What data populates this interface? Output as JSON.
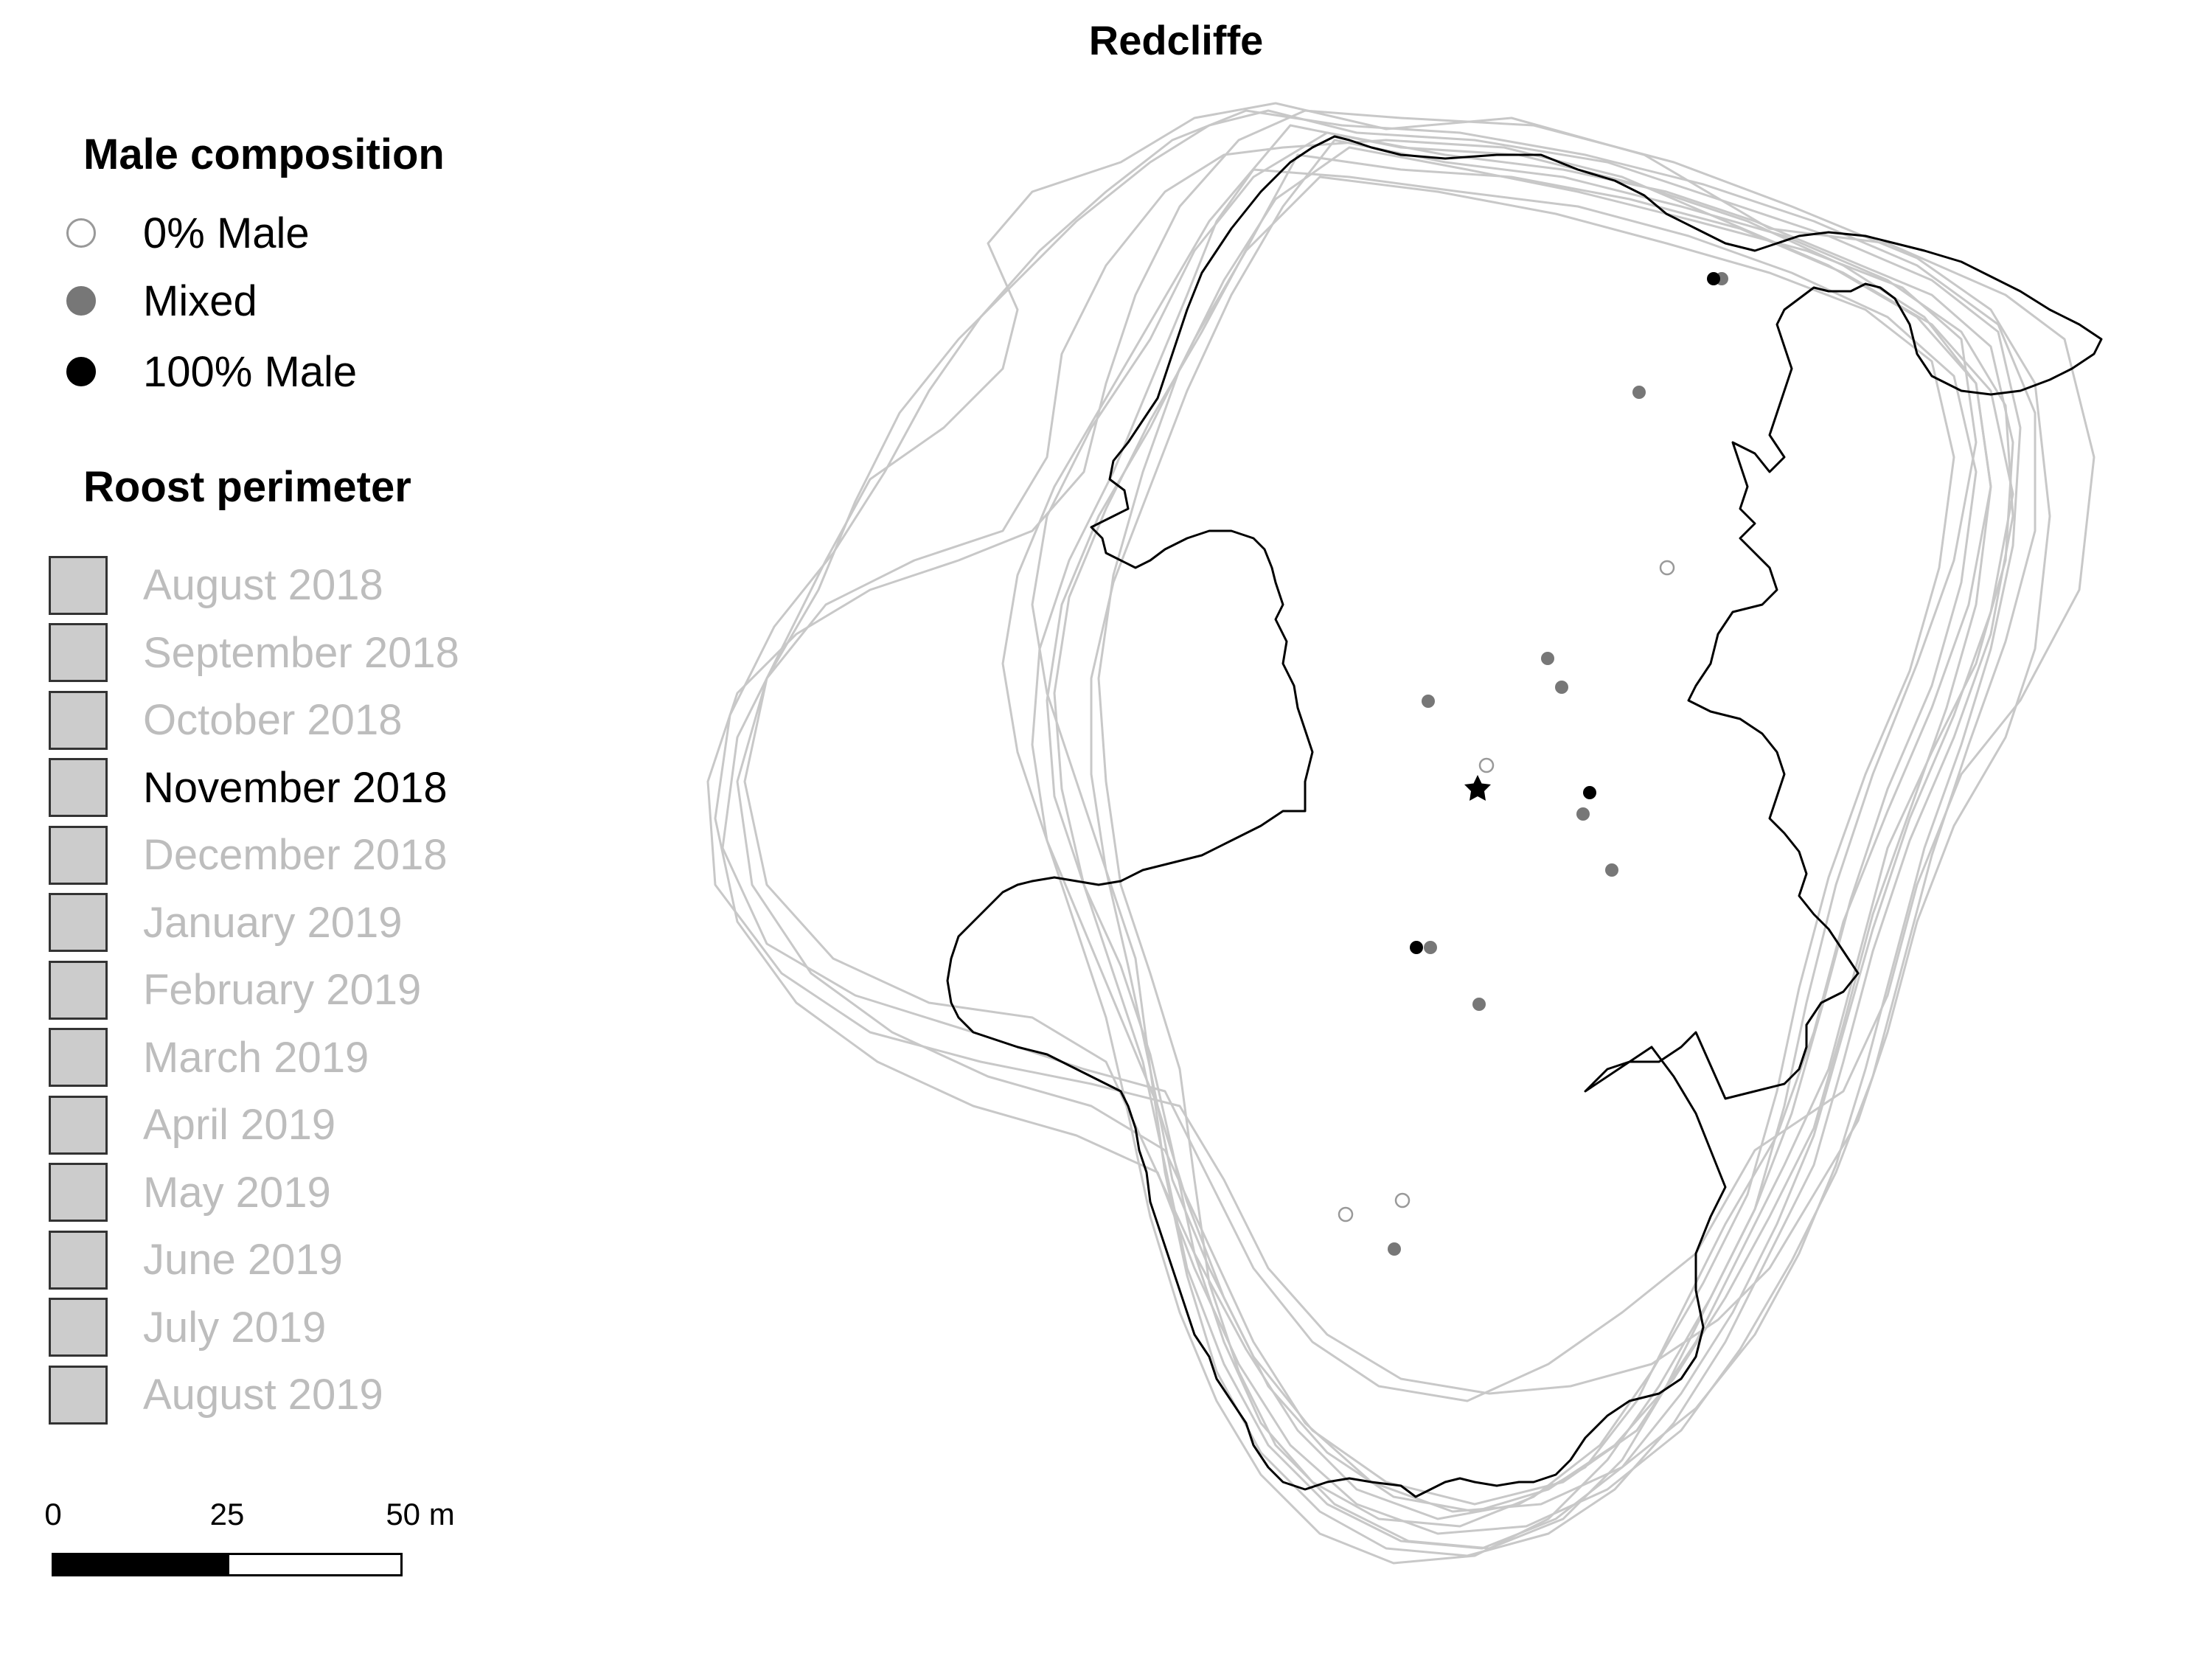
{
  "title": "Redcliffe",
  "legend": {
    "male_title": "Male composition",
    "male_items": [
      {
        "label": "0% Male",
        "fill": "#ffffff",
        "stroke": "#999999"
      },
      {
        "label": "Mixed",
        "fill": "#777777",
        "stroke": "#777777"
      },
      {
        "label": "100% Male",
        "fill": "#000000",
        "stroke": "#000000"
      }
    ],
    "roost_title": "Roost perimeter",
    "roost_items": [
      {
        "label": "August 2018",
        "active": false
      },
      {
        "label": "September 2018",
        "active": false
      },
      {
        "label": "October 2018",
        "active": false
      },
      {
        "label": "November 2018",
        "active": true
      },
      {
        "label": "December 2018",
        "active": false
      },
      {
        "label": "January 2019",
        "active": false
      },
      {
        "label": "February 2019",
        "active": false
      },
      {
        "label": "March 2019",
        "active": false
      },
      {
        "label": "April 2019",
        "active": false
      },
      {
        "label": "May 2019",
        "active": false
      },
      {
        "label": "June 2019",
        "active": false
      },
      {
        "label": "July 2019",
        "active": false
      },
      {
        "label": "August 2019",
        "active": false
      }
    ]
  },
  "scale_bar": {
    "labels": [
      "0",
      "25",
      "50 m"
    ],
    "values_m": [
      0,
      25,
      50
    ]
  },
  "colors": {
    "inactive_perimeter": "#c8c8c8",
    "active_perimeter": "#000000",
    "zero_male": "#ffffff",
    "mixed": "#777777",
    "all_male": "#000000"
  },
  "center_marker": "star-icon"
}
